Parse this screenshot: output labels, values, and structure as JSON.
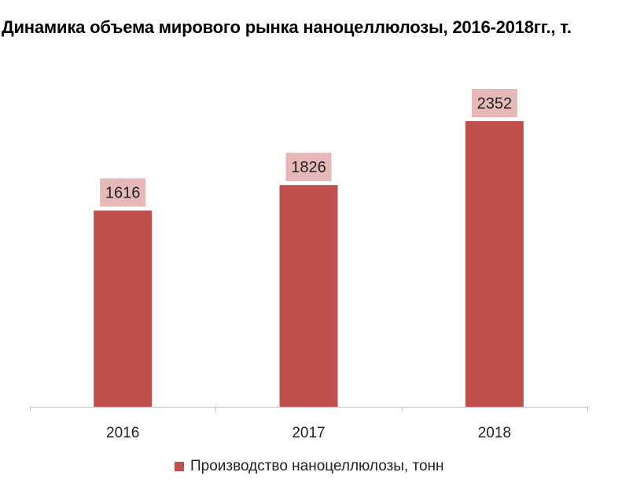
{
  "chart_data": {
    "type": "bar",
    "title": "Динамика объема мирового рынка наноцеллюлозы, 2016-2018гг., т.",
    "categories": [
      "2016",
      "2017",
      "2018"
    ],
    "series": [
      {
        "name": "Производство наноцеллюлозы, тонн",
        "values": [
          1616,
          1826,
          2352
        ],
        "color": "#c0504d"
      }
    ],
    "data_labels": [
      "1616",
      "1826",
      "2352"
    ],
    "data_label_background": "#e6b9b8",
    "ylim": [
      0,
      2450
    ],
    "xlabel": "",
    "ylabel": "",
    "grid": false,
    "legend": "bottom"
  }
}
